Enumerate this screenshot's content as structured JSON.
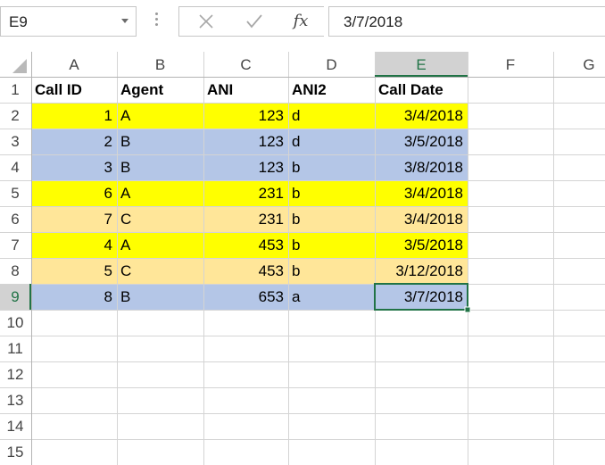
{
  "formula_bar": {
    "name_box": "E9",
    "formula_value": "3/7/2018",
    "cancel_icon": "close-icon",
    "enter_icon": "check-icon",
    "fx_label": "fx"
  },
  "sheet": {
    "columns": [
      "A",
      "B",
      "C",
      "D",
      "E",
      "F",
      "G"
    ],
    "rows": [
      "1",
      "2",
      "3",
      "4",
      "5",
      "6",
      "7",
      "8",
      "9",
      "10",
      "11",
      "12",
      "13",
      "14",
      "15"
    ],
    "selected_cell": "E9",
    "selected_column": "E",
    "selected_row": "9",
    "headers": [
      "Call ID",
      "Agent",
      "ANI",
      "ANI2",
      "Call Date"
    ],
    "data": [
      {
        "call_id": "1",
        "agent": "A",
        "ani": "123",
        "ani2": "d",
        "call_date": "3/4/2018",
        "fill": "#ffff00"
      },
      {
        "call_id": "2",
        "agent": "B",
        "ani": "123",
        "ani2": "d",
        "call_date": "3/5/2018",
        "fill": "#b4c6e7"
      },
      {
        "call_id": "3",
        "agent": "B",
        "ani": "123",
        "ani2": "b",
        "call_date": "3/8/2018",
        "fill": "#b4c6e7"
      },
      {
        "call_id": "6",
        "agent": "A",
        "ani": "231",
        "ani2": "b",
        "call_date": "3/4/2018",
        "fill": "#ffff00"
      },
      {
        "call_id": "7",
        "agent": "C",
        "ani": "231",
        "ani2": "b",
        "call_date": "3/4/2018",
        "fill": "#ffe699"
      },
      {
        "call_id": "4",
        "agent": "A",
        "ani": "453",
        "ani2": "b",
        "call_date": "3/5/2018",
        "fill": "#ffff00"
      },
      {
        "call_id": "5",
        "agent": "C",
        "ani": "453",
        "ani2": "b",
        "call_date": "3/12/2018",
        "fill": "#ffe699"
      },
      {
        "call_id": "8",
        "agent": "B",
        "ani": "653",
        "ani2": "a",
        "call_date": "3/7/2018",
        "fill": "#b4c6e7"
      }
    ]
  },
  "colors": {
    "gridline": "#d4d4d4",
    "header_bg": "#ffffff",
    "header_selected_bg": "#d2d2d2",
    "header_selected_text": "#217346",
    "selection_border": "#217346"
  }
}
